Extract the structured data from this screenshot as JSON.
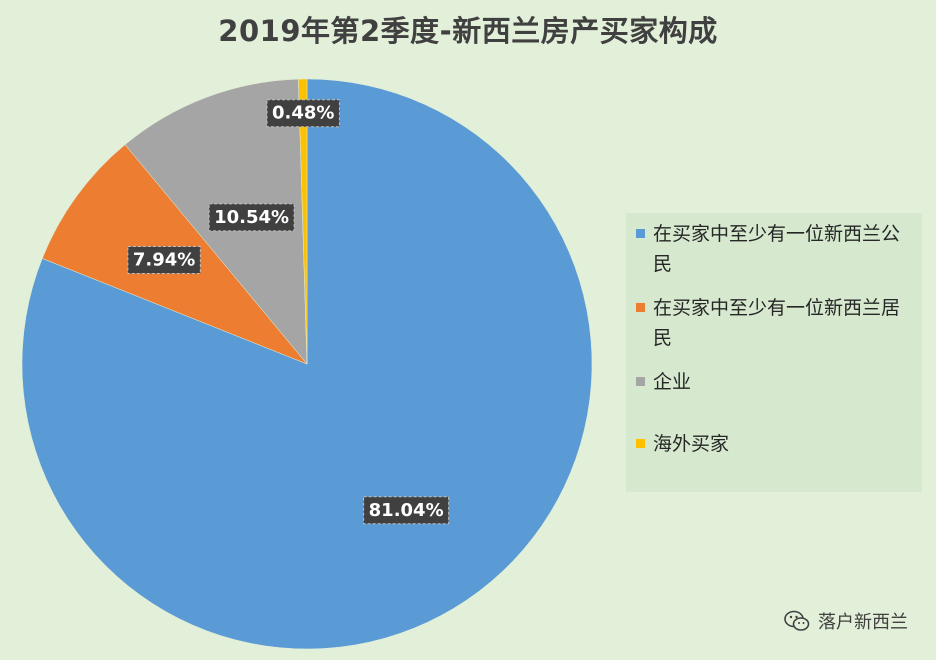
{
  "chart_data": {
    "type": "pie",
    "title": "2019年第2季度-新西兰房产买家构成",
    "categories": [
      "在买家中至少有一位新西兰公民",
      "在买家中至少有一位新西兰居民",
      "企业",
      "海外买家"
    ],
    "values": [
      81.04,
      7.94,
      10.54,
      0.48
    ],
    "data_labels": [
      "81.04%",
      "7.94%",
      "10.54%",
      "0.48%"
    ],
    "colors": [
      "#5b9bd5",
      "#ed7d31",
      "#a5a5a5",
      "#ffc000"
    ],
    "legend_position": "right"
  },
  "watermark": {
    "text": "落户新西兰",
    "icon": "wechat-icon"
  }
}
